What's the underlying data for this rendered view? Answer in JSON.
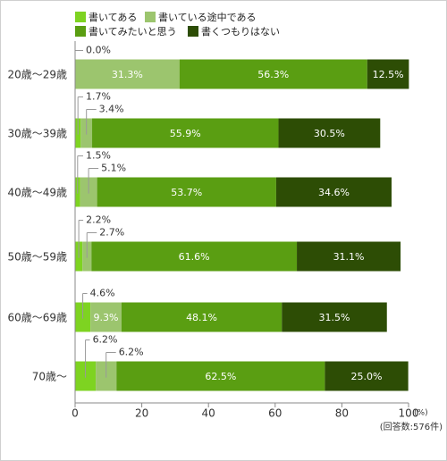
{
  "chart_data": {
    "type": "bar",
    "orientation": "horizontal",
    "stacked": true,
    "categories": [
      "20歳〜29歳",
      "30歳〜39歳",
      "40歳〜49歳",
      "50歳〜59歳",
      "60歳〜69歳",
      "70歳〜"
    ],
    "series": [
      {
        "name": "書いてある",
        "color": "#7ed321",
        "values": [
          0.0,
          1.7,
          1.5,
          2.2,
          4.6,
          6.2
        ]
      },
      {
        "name": "書いている途中である",
        "color": "#9cc56e",
        "values": [
          31.3,
          3.4,
          5.1,
          2.7,
          9.3,
          6.2
        ]
      },
      {
        "name": "書いてみたいと思う",
        "color": "#5a9e12",
        "values": [
          56.3,
          55.9,
          53.7,
          61.6,
          48.1,
          62.5
        ]
      },
      {
        "name": "書くつもりはない",
        "color": "#2d4d05",
        "values": [
          12.5,
          30.5,
          34.6,
          31.1,
          31.5,
          25.0
        ]
      }
    ],
    "value_labels": [
      [
        "0.0%",
        "31.3%",
        "56.3%",
        "12.5%"
      ],
      [
        "1.7%",
        "3.4%",
        "55.9%",
        "30.5%"
      ],
      [
        "1.5%",
        "5.1%",
        "53.7%",
        "34.6%"
      ],
      [
        "2.2%",
        "2.7%",
        "61.6%",
        "31.1%"
      ],
      [
        "4.6%",
        "9.3%",
        "48.1%",
        "31.5%"
      ],
      [
        "6.2%",
        "6.2%",
        "62.5%",
        "25.0%"
      ]
    ],
    "xlim": [
      0,
      100
    ],
    "xticks": [
      "0",
      "20",
      "40",
      "60",
      "80",
      "100"
    ],
    "x_unit": "(%)",
    "note": "(回答数:576件)",
    "grid": false,
    "legend_position": "top"
  }
}
